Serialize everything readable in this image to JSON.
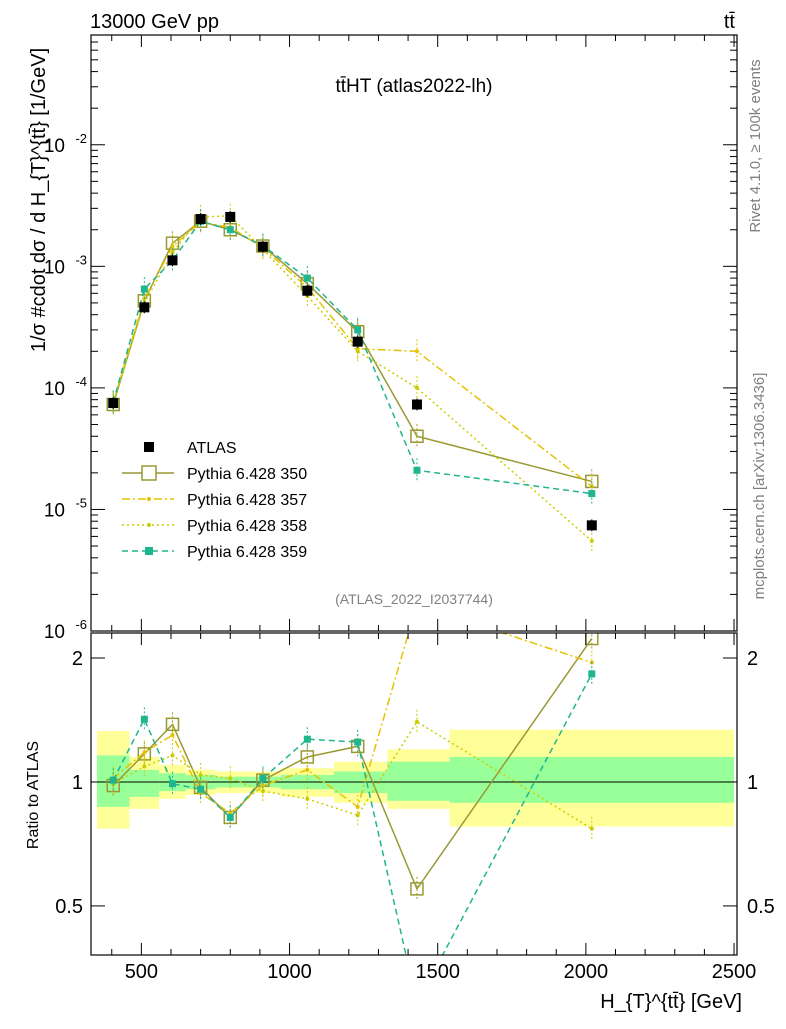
{
  "header": {
    "left": "13000 GeV pp",
    "right": "tt̄"
  },
  "side_labels": {
    "rivet": "Rivet 4.1.0, ≥ 100k events",
    "mcplots": "mcplots.cern.ch [arXiv:1306.3436]"
  },
  "chart_data": {
    "type": "scatter",
    "title": "tt̄HT (atlas2022-lh)",
    "analysis": "(ATLAS_2022_I2037744)",
    "xlabel": "H_{T}^{tt̄} [GeV]",
    "ylabel": "1/σ #cdot dσ / d H_{T}^{tt̄} [1/GeV]",
    "ratio_ylabel": "Ratio to ATLAS",
    "xlim": [
      330,
      2510
    ],
    "ylim": [
      1e-06,
      0.08
    ],
    "yscale": "log",
    "ratio_ylim": [
      0.38,
      2.3
    ],
    "ratio_yscale": "log",
    "x_ticks": [
      500,
      1000,
      1500,
      2000,
      2500
    ],
    "y_ticks": [
      {
        "value": 1e-06,
        "label": "10^-6"
      },
      {
        "value": 1e-05,
        "label": "10^-5"
      },
      {
        "value": 0.0001,
        "label": "10^-4"
      },
      {
        "value": 0.001,
        "label": "10^-3"
      },
      {
        "value": 0.01,
        "label": "10^-2"
      }
    ],
    "ratio_ticks": [
      {
        "value": 0.5,
        "label": "0.5"
      },
      {
        "value": 1,
        "label": "1"
      },
      {
        "value": 2,
        "label": "2"
      }
    ],
    "legend_position": "lower-left",
    "grid": false,
    "bins": [
      {
        "x": 405,
        "lo": 350,
        "hi": 460
      },
      {
        "x": 510,
        "lo": 460,
        "hi": 560
      },
      {
        "x": 605,
        "lo": 560,
        "hi": 650
      },
      {
        "x": 700,
        "lo": 650,
        "hi": 750
      },
      {
        "x": 800,
        "lo": 750,
        "hi": 850
      },
      {
        "x": 910,
        "lo": 850,
        "hi": 970
      },
      {
        "x": 1060,
        "lo": 970,
        "hi": 1150
      },
      {
        "x": 1230,
        "lo": 1150,
        "hi": 1330
      },
      {
        "x": 1430,
        "lo": 1330,
        "hi": 1540
      },
      {
        "x": 2020,
        "lo": 1540,
        "hi": 2500
      }
    ],
    "data": {
      "name": "ATLAS",
      "color": "#000000",
      "y": [
        7.5e-05,
        0.00046,
        0.00112,
        0.00245,
        0.00255,
        0.00145,
        0.00063,
        0.00024,
        7.3e-05,
        7.4e-06
      ]
    },
    "bands": {
      "inner_color": "#99ff99",
      "outer_color": "#ffff99",
      "inner": [
        [
          0.87,
          1.16
        ],
        [
          0.92,
          1.07
        ],
        [
          0.95,
          1.05
        ],
        [
          0.96,
          1.04
        ],
        [
          0.97,
          1.03
        ],
        [
          0.97,
          1.03
        ],
        [
          0.96,
          1.04
        ],
        [
          0.94,
          1.06
        ],
        [
          0.9,
          1.12
        ],
        [
          0.89,
          1.15
        ]
      ],
      "outer": [
        [
          0.77,
          1.33
        ],
        [
          0.86,
          1.15
        ],
        [
          0.91,
          1.1
        ],
        [
          0.93,
          1.07
        ],
        [
          0.94,
          1.06
        ],
        [
          0.94,
          1.06
        ],
        [
          0.92,
          1.08
        ],
        [
          0.89,
          1.12
        ],
        [
          0.86,
          1.2
        ],
        [
          0.78,
          1.34
        ]
      ]
    },
    "series": [
      {
        "name": "Pythia 6.428 350",
        "color": "#999933",
        "style": "solid",
        "marker": "open-square",
        "y": [
          7.3e-05,
          0.00052,
          0.00155,
          0.00235,
          0.002,
          0.00147,
          0.00072,
          0.00029,
          4e-05,
          1.7e-05
        ],
        "ratio": [
          0.98,
          1.17,
          1.38,
          0.97,
          0.82,
          1.01,
          1.15,
          1.22,
          0.55,
          2.23
        ]
      },
      {
        "name": "Pythia 6.428 357",
        "color": "#e6c200",
        "style": "dashdot",
        "marker": "dot",
        "y": [
          7.6e-05,
          0.00054,
          0.00146,
          0.0023,
          0.0021,
          0.00142,
          0.00067,
          0.00021,
          0.0002,
          1.55e-05
        ],
        "ratio": [
          1.02,
          1.18,
          1.3,
          0.94,
          0.84,
          0.98,
          1.07,
          0.87,
          2.7,
          1.95
        ]
      },
      {
        "name": "Pythia 6.428 358",
        "color": "#cccc00",
        "style": "dotted",
        "marker": "dot",
        "y": [
          7.4e-05,
          0.0005,
          0.0013,
          0.00255,
          0.0026,
          0.00138,
          0.00057,
          0.0002,
          0.0001,
          5.5e-06
        ],
        "ratio": [
          0.99,
          1.09,
          1.16,
          1.04,
          1.02,
          0.95,
          0.91,
          0.83,
          1.4,
          0.77
        ]
      },
      {
        "name": "Pythia 6.428 359",
        "color": "#1fb58f",
        "style": "dashed",
        "marker": "filled-square",
        "y": [
          7.6e-05,
          0.00065,
          0.00112,
          0.00235,
          0.002,
          0.00148,
          0.0008,
          0.0003,
          2.1e-05,
          1.35e-05
        ],
        "ratio": [
          1.01,
          1.42,
          0.99,
          0.96,
          0.82,
          1.02,
          1.27,
          1.25,
          0.29,
          1.83
        ]
      }
    ]
  }
}
